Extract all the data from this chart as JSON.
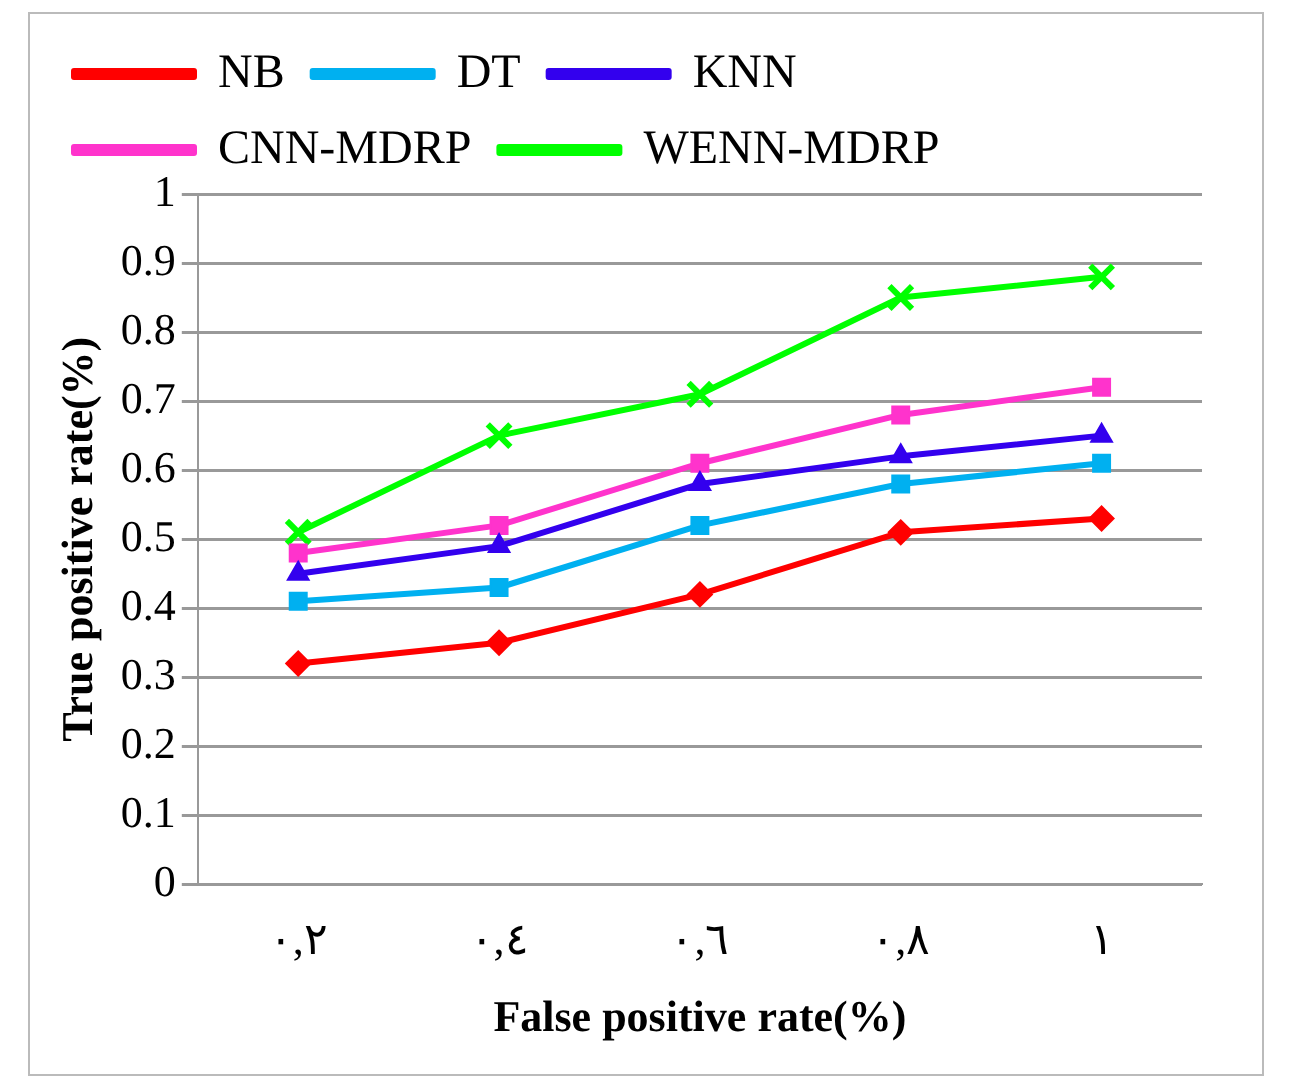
{
  "chart_data": {
    "type": "line",
    "xlabel": "False positive rate(%)",
    "ylabel": "True positive rate(%)",
    "categories": [
      "٠,٢",
      "٠,٤",
      "٠,٦",
      "٠,٨",
      "١"
    ],
    "ylim": [
      0,
      1
    ],
    "yticks": [
      0,
      0.1,
      0.2,
      0.3,
      0.4,
      0.5,
      0.6,
      0.7,
      0.8,
      0.9,
      1
    ],
    "grid": "y",
    "legend": "top",
    "series": [
      {
        "name": "NB",
        "color": "#ff0000",
        "marker": "diamond",
        "values": [
          0.32,
          0.35,
          0.42,
          0.51,
          0.53
        ]
      },
      {
        "name": "DT",
        "color": "#00b0f0",
        "marker": "square",
        "values": [
          0.41,
          0.43,
          0.52,
          0.58,
          0.61
        ]
      },
      {
        "name": "KNN",
        "color": "#3300ee",
        "marker": "triangle",
        "values": [
          0.45,
          0.49,
          0.58,
          0.62,
          0.65
        ]
      },
      {
        "name": "CNN-MDRP",
        "color": "#ff33cc",
        "marker": "square",
        "values": [
          0.48,
          0.52,
          0.61,
          0.68,
          0.72
        ]
      },
      {
        "name": "WENN-MDRP",
        "color": "#00ff00",
        "marker": "cross",
        "values": [
          0.51,
          0.65,
          0.71,
          0.85,
          0.88
        ]
      }
    ]
  }
}
